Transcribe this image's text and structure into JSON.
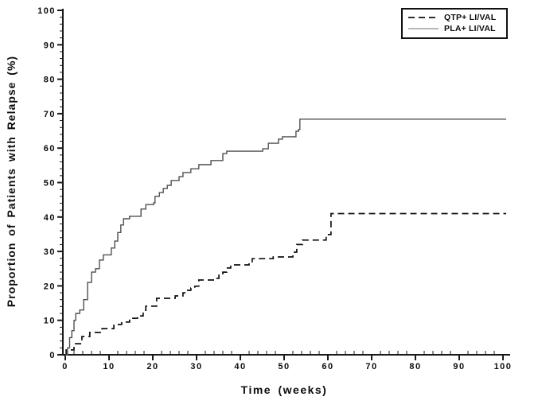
{
  "chart_data": {
    "type": "line",
    "subtype": "step-post",
    "title": "",
    "xlabel": "Time (weeks)",
    "ylabel": "Proportion of Patients with Relapse (%)",
    "xlim": [
      0,
      100
    ],
    "ylim": [
      0,
      100
    ],
    "x_ticks": [
      0,
      10,
      20,
      30,
      40,
      50,
      60,
      70,
      80,
      90,
      100
    ],
    "y_ticks": [
      0,
      10,
      20,
      30,
      40,
      50,
      60,
      70,
      80,
      90,
      100
    ],
    "minor_tick_step_x": 2,
    "minor_tick_step_y": 2,
    "grid": false,
    "axis_color": "#1a1a1a",
    "legend": {
      "position": "top-right",
      "entries": [
        {
          "label": "QTP+ LI/VAL",
          "line": "dashed",
          "color": "#111111"
        },
        {
          "label": "PLA+ LI/VAL",
          "line": "solid",
          "color": "#8a8a8a"
        }
      ]
    },
    "series": [
      {
        "name": "QTP+ LI/VAL",
        "style": "dashed",
        "color": "#111111",
        "points": [
          [
            0,
            0
          ],
          [
            0.2,
            1.4
          ],
          [
            2,
            3.2
          ],
          [
            3.8,
            5.3
          ],
          [
            5.6,
            6.5
          ],
          [
            8.4,
            7.6
          ],
          [
            11.1,
            8.8
          ],
          [
            12.9,
            9.5
          ],
          [
            14.7,
            10.6
          ],
          [
            16.5,
            11.3
          ],
          [
            17.8,
            12.9
          ],
          [
            18.4,
            14.1
          ],
          [
            20.9,
            16.4
          ],
          [
            25.1,
            17.1
          ],
          [
            26.9,
            18
          ],
          [
            27.8,
            18.7
          ],
          [
            28.7,
            19.4
          ],
          [
            29.6,
            19.9
          ],
          [
            30.5,
            21.7
          ],
          [
            34.2,
            22.2
          ],
          [
            35.1,
            23.3
          ],
          [
            36,
            24
          ],
          [
            36.9,
            25.2
          ],
          [
            37.8,
            26.1
          ],
          [
            42,
            26.8
          ],
          [
            42.7,
            27.9
          ],
          [
            47.5,
            28.4
          ],
          [
            52,
            29.8
          ],
          [
            52.9,
            32
          ],
          [
            54.2,
            33.3
          ],
          [
            59.6,
            34.9
          ],
          [
            60.7,
            41
          ],
          [
            100,
            41
          ]
        ]
      },
      {
        "name": "PLA+ LI/VAL",
        "style": "solid",
        "color": "#4f4f4f",
        "points": [
          [
            0,
            0
          ],
          [
            0.5,
            2
          ],
          [
            1,
            5
          ],
          [
            1.5,
            7
          ],
          [
            2,
            10
          ],
          [
            2.4,
            12
          ],
          [
            3.3,
            13
          ],
          [
            4.2,
            16
          ],
          [
            5.1,
            21
          ],
          [
            6,
            24
          ],
          [
            6.9,
            25
          ],
          [
            7.8,
            27.5
          ],
          [
            8.7,
            29
          ],
          [
            10.5,
            31
          ],
          [
            11.3,
            33
          ],
          [
            12,
            35.5
          ],
          [
            12.7,
            37.7
          ],
          [
            13.3,
            39.5
          ],
          [
            14.7,
            40.2
          ],
          [
            17.3,
            42.3
          ],
          [
            18.4,
            43.6
          ],
          [
            20.2,
            44.1
          ],
          [
            20.5,
            46
          ],
          [
            21.5,
            47.1
          ],
          [
            22.4,
            48.3
          ],
          [
            23.3,
            49.2
          ],
          [
            24.2,
            50.6
          ],
          [
            26,
            51.7
          ],
          [
            26.9,
            52.9
          ],
          [
            28.7,
            54
          ],
          [
            30.5,
            55.2
          ],
          [
            33.3,
            56.4
          ],
          [
            36,
            58.4
          ],
          [
            36.9,
            59.1
          ],
          [
            45.1,
            59.8
          ],
          [
            46.4,
            61.4
          ],
          [
            48.7,
            62.6
          ],
          [
            49.6,
            63.3
          ],
          [
            52.7,
            64.9
          ],
          [
            53.3,
            65.4
          ],
          [
            53.6,
            68.4
          ],
          [
            100,
            68.4
          ]
        ]
      }
    ]
  }
}
